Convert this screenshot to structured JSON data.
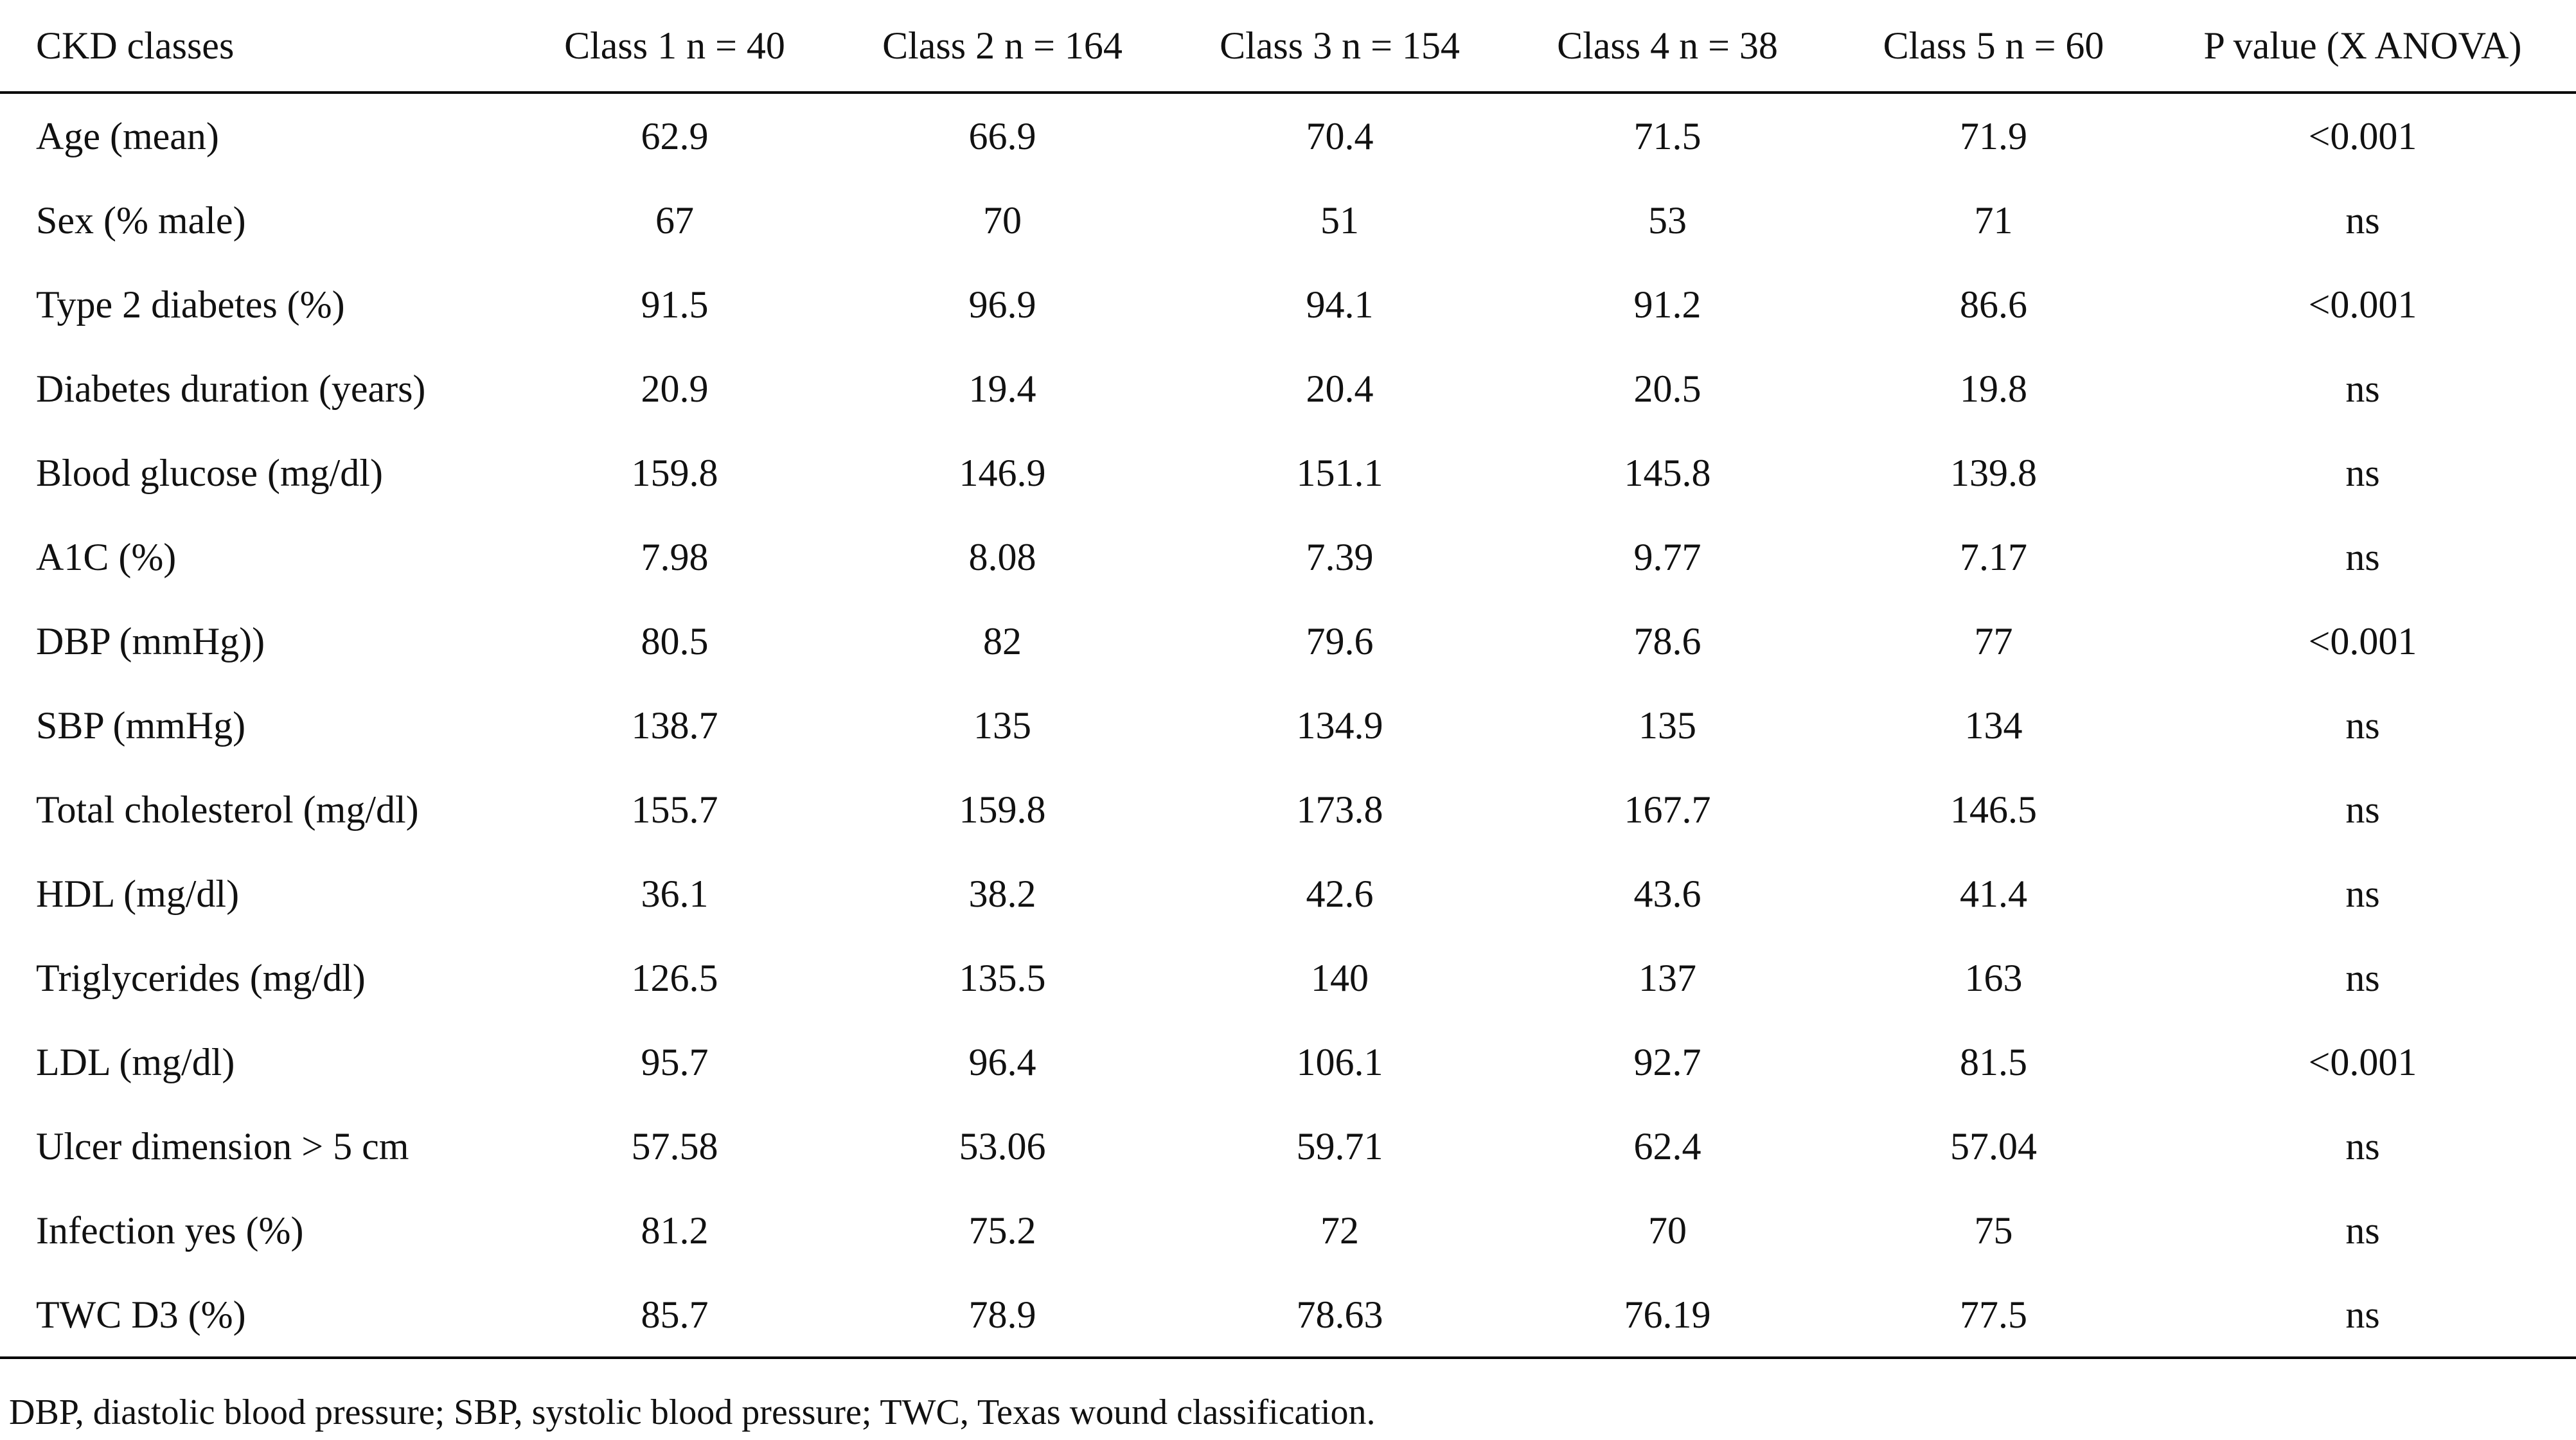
{
  "table": {
    "headers": [
      "CKD classes",
      "Class 1 n = 40",
      "Class 2 n = 164",
      "Class 3 n = 154",
      "Class 4 n = 38",
      "Class 5 n = 60",
      "P value (X ANOVA)"
    ],
    "rows": [
      [
        "Age (mean)",
        "62.9",
        "66.9",
        "70.4",
        "71.5",
        "71.9",
        "<0.001"
      ],
      [
        "Sex (% male)",
        "67",
        "70",
        "51",
        "53",
        "71",
        "ns"
      ],
      [
        "Type 2 diabetes (%)",
        "91.5",
        "96.9",
        "94.1",
        "91.2",
        "86.6",
        "<0.001"
      ],
      [
        "Diabetes duration (years)",
        "20.9",
        "19.4",
        "20.4",
        "20.5",
        "19.8",
        "ns"
      ],
      [
        "Blood glucose (mg/dl)",
        "159.8",
        "146.9",
        "151.1",
        "145.8",
        "139.8",
        "ns"
      ],
      [
        "A1C (%)",
        "7.98",
        "8.08",
        "7.39",
        "9.77",
        "7.17",
        "ns"
      ],
      [
        "DBP (mmHg))",
        "80.5",
        "82",
        "79.6",
        "78.6",
        "77",
        "<0.001"
      ],
      [
        "SBP (mmHg)",
        "138.7",
        "135",
        "134.9",
        "135",
        "134",
        "ns"
      ],
      [
        "Total cholesterol (mg/dl)",
        "155.7",
        "159.8",
        "173.8",
        "167.7",
        "146.5",
        "ns"
      ],
      [
        "HDL (mg/dl)",
        "36.1",
        "38.2",
        "42.6",
        "43.6",
        "41.4",
        "ns"
      ],
      [
        "Triglycerides (mg/dl)",
        "126.5",
        "135.5",
        "140",
        "137",
        "163",
        "ns"
      ],
      [
        "LDL (mg/dl)",
        "95.7",
        "96.4",
        "106.1",
        "92.7",
        "81.5",
        "<0.001"
      ],
      [
        "Ulcer dimension > 5 cm",
        "57.58",
        "53.06",
        "59.71",
        "62.4",
        "57.04",
        "ns"
      ],
      [
        "Infection yes (%)",
        "81.2",
        "75.2",
        "72",
        "70",
        "75",
        "ns"
      ],
      [
        "TWC D3 (%)",
        "85.7",
        "78.9",
        "78.63",
        "76.19",
        "77.5",
        "ns"
      ]
    ]
  },
  "footnote": "DBP, diastolic blood pressure; SBP, systolic blood pressure; TWC, Texas wound classification."
}
